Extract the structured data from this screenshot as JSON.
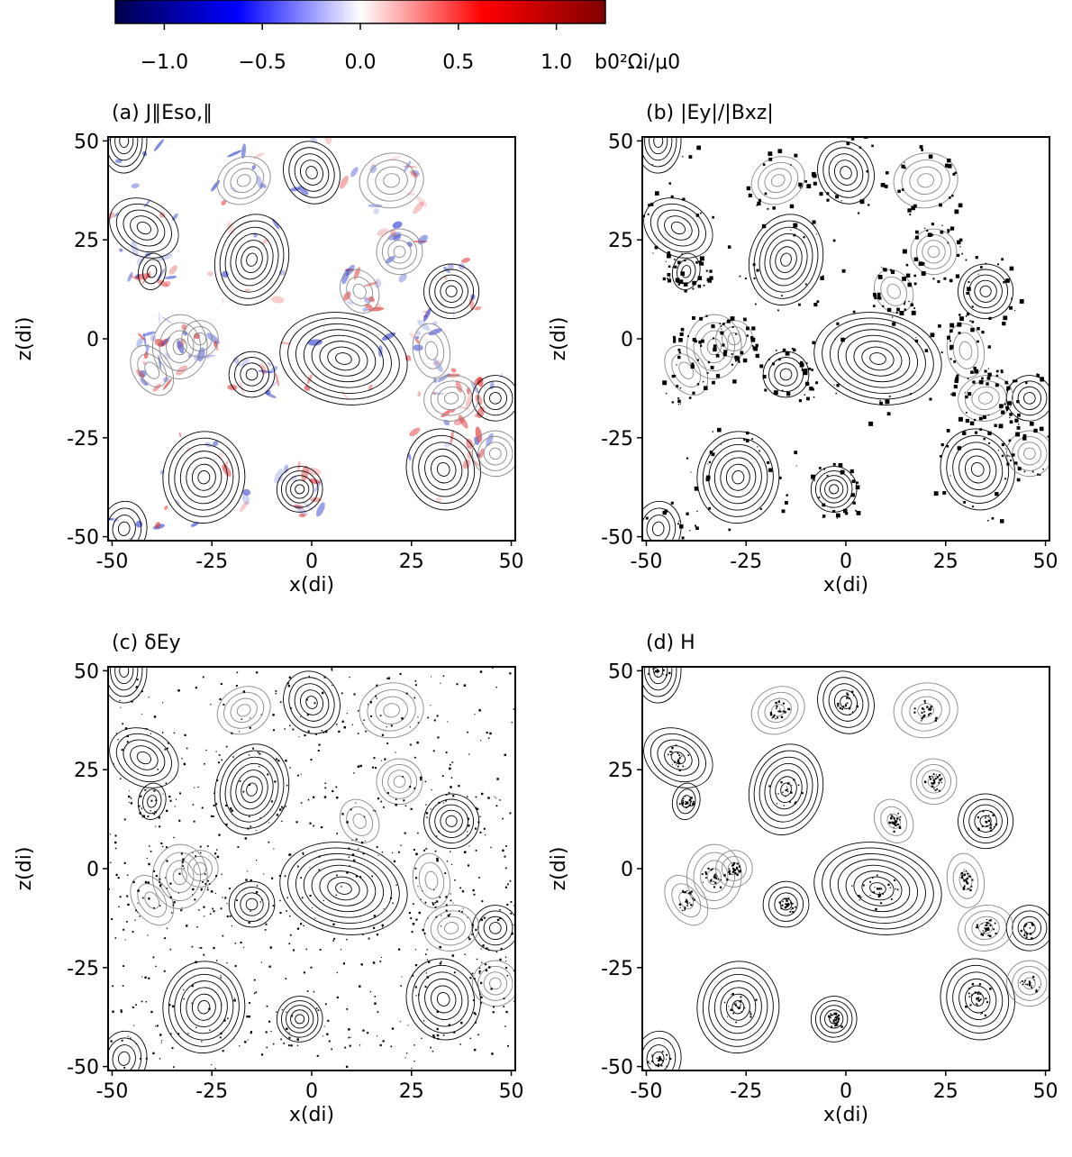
{
  "colorbar": {
    "label": "b0²Ωi/μ0",
    "lim": [
      -1.25,
      1.25
    ],
    "ticks": [
      {
        "value": -1.0,
        "label": "−1.0"
      },
      {
        "value": -0.5,
        "label": "−0.5"
      },
      {
        "value": 0.0,
        "label": "0.0"
      },
      {
        "value": 0.5,
        "label": "0.5"
      },
      {
        "value": 1.0,
        "label": "1.0"
      }
    ]
  },
  "chart_data": [
    {
      "type": "contour",
      "title": "(a) J∥Eso,∥",
      "xlabel": "x(di)",
      "ylabel": "z(di)",
      "xlim": [
        -51,
        51
      ],
      "ylim": [
        -51,
        51
      ],
      "xticks": [
        -50,
        -25,
        0,
        25,
        50
      ],
      "yticks": [
        -50,
        -25,
        0,
        25,
        50
      ]
    },
    {
      "type": "contour",
      "title": "(b) |Ey|/|Bxz|",
      "xlabel": "x(di)",
      "ylabel": "z(di)",
      "xlim": [
        -51,
        51
      ],
      "ylim": [
        -51,
        51
      ],
      "xticks": [
        -50,
        -25,
        0,
        25,
        50
      ],
      "yticks": [
        -50,
        -25,
        0,
        25,
        50
      ]
    },
    {
      "type": "contour",
      "title": "(c) δEy",
      "xlabel": "x(di)",
      "ylabel": "z(di)",
      "xlim": [
        -51,
        51
      ],
      "ylim": [
        -51,
        51
      ],
      "xticks": [
        -50,
        -25,
        0,
        25,
        50
      ],
      "yticks": [
        -50,
        -25,
        0,
        25,
        50
      ]
    },
    {
      "type": "contour",
      "title": "(d) H",
      "xlabel": "x(di)",
      "ylabel": "z(di)",
      "xlim": [
        -51,
        51
      ],
      "ylim": [
        -51,
        51
      ],
      "xticks": [
        -50,
        -25,
        0,
        25,
        50
      ],
      "yticks": [
        -50,
        -25,
        0,
        25,
        50
      ]
    }
  ]
}
